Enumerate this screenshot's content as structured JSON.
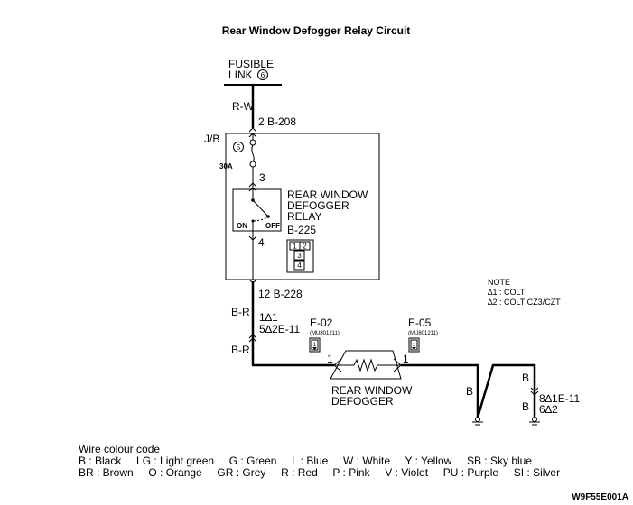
{
  "title": "Rear Window Defogger Relay Circuit",
  "fusible_link": {
    "line1": "FUSIBLE",
    "line2": "LINK",
    "number": "6"
  },
  "wires": {
    "rw": "R-W",
    "br1": "B-R",
    "br2": "B-R",
    "b1": "B",
    "b2": "B",
    "b3": "B"
  },
  "connectors": {
    "b208": "2  B-208",
    "pin3": "3",
    "pin4": "4",
    "b225": "B-225",
    "b228": "12  B-228",
    "e11_top_1": "1∆1",
    "e11_top_2": "5∆2E-11",
    "e02": "E-02",
    "e02_part": "(MU801211)",
    "e02_pin": "1",
    "e05": "E-05",
    "e05_part": "(MU801211)",
    "e05_pin": "1",
    "e11_bot_1": "8∆1E-11",
    "e11_bot_2": "6∆2",
    "b225_pins": [
      "1",
      "2",
      "3",
      "4"
    ],
    "conn_icon_pin": "1"
  },
  "junction_block": {
    "label": "J/B",
    "fuse_number": "5",
    "fuse_rating": "30A"
  },
  "relay": {
    "line1": "REAR WINDOW",
    "line2": "DEFOGGER",
    "line3": "RELAY",
    "on": "ON",
    "off": "OFF"
  },
  "defogger": {
    "line1": "REAR WINDOW",
    "line2": "DEFOGGER"
  },
  "note": {
    "title": "NOTE",
    "items": [
      "∆1 : COLT",
      "∆2 : COLT CZ3/CZT"
    ]
  },
  "wire_colour_code": {
    "title": "Wire colour code",
    "row1": "B : Black     LG : Light green     G : Green     L : Blue     W : White     Y : Yellow     SB : Sky blue",
    "row2": "BR : Brown     O : Orange     GR : Grey     R : Red     P : Pink     V : Violet     PU : Purple     SI : Silver"
  },
  "figure_code": "W9F55E001A"
}
